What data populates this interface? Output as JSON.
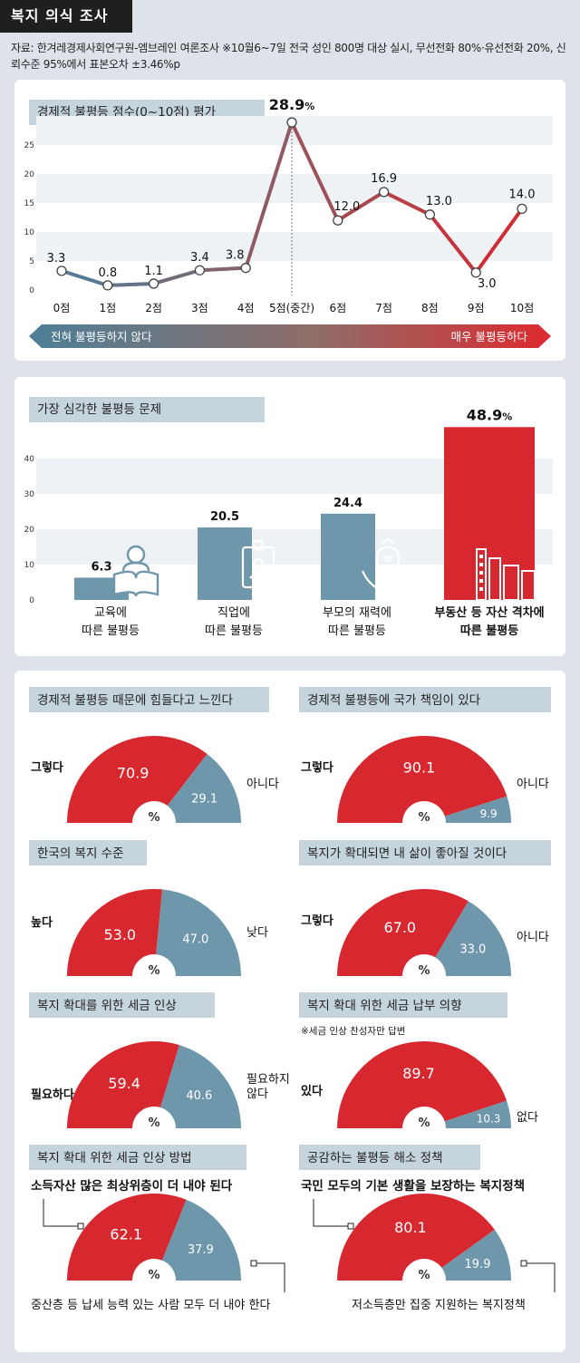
{
  "header": {
    "title": "복지 의식 조사"
  },
  "source": {
    "text": "자료: 한겨레경제사회연구원-엠브레인 여론조사  ※10월6~7일 전국 성인 800명 대상 실시, 무선전화 80%·유선전화 20%, 신뢰수준 95%에서 표본오차 ±3.46%p"
  },
  "colors": {
    "red": "#d7282f",
    "blue": "#6f97ab",
    "grid": "#eef2f5",
    "titlebar": "#c5d4dd"
  },
  "chart_data": [
    {
      "type": "line",
      "title": "경제적 불평등 점수(0~10점) 평가",
      "categories": [
        "0점",
        "1점",
        "2점",
        "3점",
        "4점",
        "5점(중간)",
        "6점",
        "7점",
        "8점",
        "9점",
        "10점"
      ],
      "values": [
        3.3,
        0.8,
        1.1,
        3.4,
        3.8,
        28.9,
        12.0,
        16.9,
        13.0,
        3.0,
        14.0
      ],
      "value_labels": [
        "3.3",
        "0.8",
        "1.1",
        "3.4",
        "3.8",
        "28.9%",
        "12.0",
        "16.9",
        "13.0",
        "3.0",
        "14.0"
      ],
      "yticks": [
        0,
        5,
        10,
        15,
        20,
        25
      ],
      "ylim": [
        0,
        30
      ],
      "arrow_left": "전혀 불평등하지 않다",
      "arrow_right": "매우 불평등하다"
    },
    {
      "type": "bar",
      "title": "가장 심각한 불평등 문제",
      "categories": [
        "교육에\n따른 불평등",
        "직업에\n따른 불평등",
        "부모의 재력에\n따른 불평등",
        "부동산 등 자산 격차에\n따른 불평등"
      ],
      "values": [
        6.3,
        20.5,
        24.4,
        48.9
      ],
      "value_labels": [
        "6.3",
        "20.5",
        "24.4",
        "48.9%"
      ],
      "yticks": [
        0,
        10,
        20,
        30,
        40
      ],
      "ylim": [
        0,
        50
      ],
      "icons": [
        "reading-person-icon",
        "id-badge-icon",
        "money-bag-hands-icon",
        "buildings-icon"
      ]
    },
    {
      "type": "pie",
      "title": "경제적 불평등 때문에 힘들다고 느낀다",
      "values": [
        70.9,
        29.1
      ],
      "labels": [
        "그렇다",
        "아니다"
      ]
    },
    {
      "type": "pie",
      "title": "경제적 불평등에 국가 책임이 있다",
      "values": [
        90.1,
        9.9
      ],
      "labels": [
        "그렇다",
        "아니다"
      ]
    },
    {
      "type": "pie",
      "title": "한국의 복지 수준",
      "values": [
        53.0,
        47.0
      ],
      "labels": [
        "높다",
        "낮다"
      ]
    },
    {
      "type": "pie",
      "title": "복지가 확대되면 내 삶이 좋아질 것이다",
      "values": [
        67.0,
        33.0
      ],
      "labels": [
        "그렇다",
        "아니다"
      ]
    },
    {
      "type": "pie",
      "title": "복지 확대를 위한 세금 인상",
      "values": [
        59.4,
        40.6
      ],
      "labels": [
        "필요하다",
        "필요하지\n않다"
      ]
    },
    {
      "type": "pie",
      "title": "복지 확대 위한 세금 납부 의향",
      "note": "※세금 인상 찬성자만 답변",
      "values": [
        89.7,
        10.3
      ],
      "labels": [
        "있다",
        "없다"
      ]
    },
    {
      "type": "pie",
      "title": "복지 확대 위한 세금 인상 방법",
      "values": [
        62.1,
        37.9
      ],
      "labels": [
        "소득자산 많은 최상위층이 더 내야 된다",
        "중산층 등 납세 능력 있는 사람 모두 더 내야 한다"
      ]
    },
    {
      "type": "pie",
      "title": "공감하는 불평등 해소 정책",
      "values": [
        80.1,
        19.9
      ],
      "labels": [
        "국민 모두의 기본 생활을 보장하는 복지정책",
        "저소득층만 집중 지원하는 복지정책"
      ]
    }
  ],
  "pct_symbol": "%"
}
